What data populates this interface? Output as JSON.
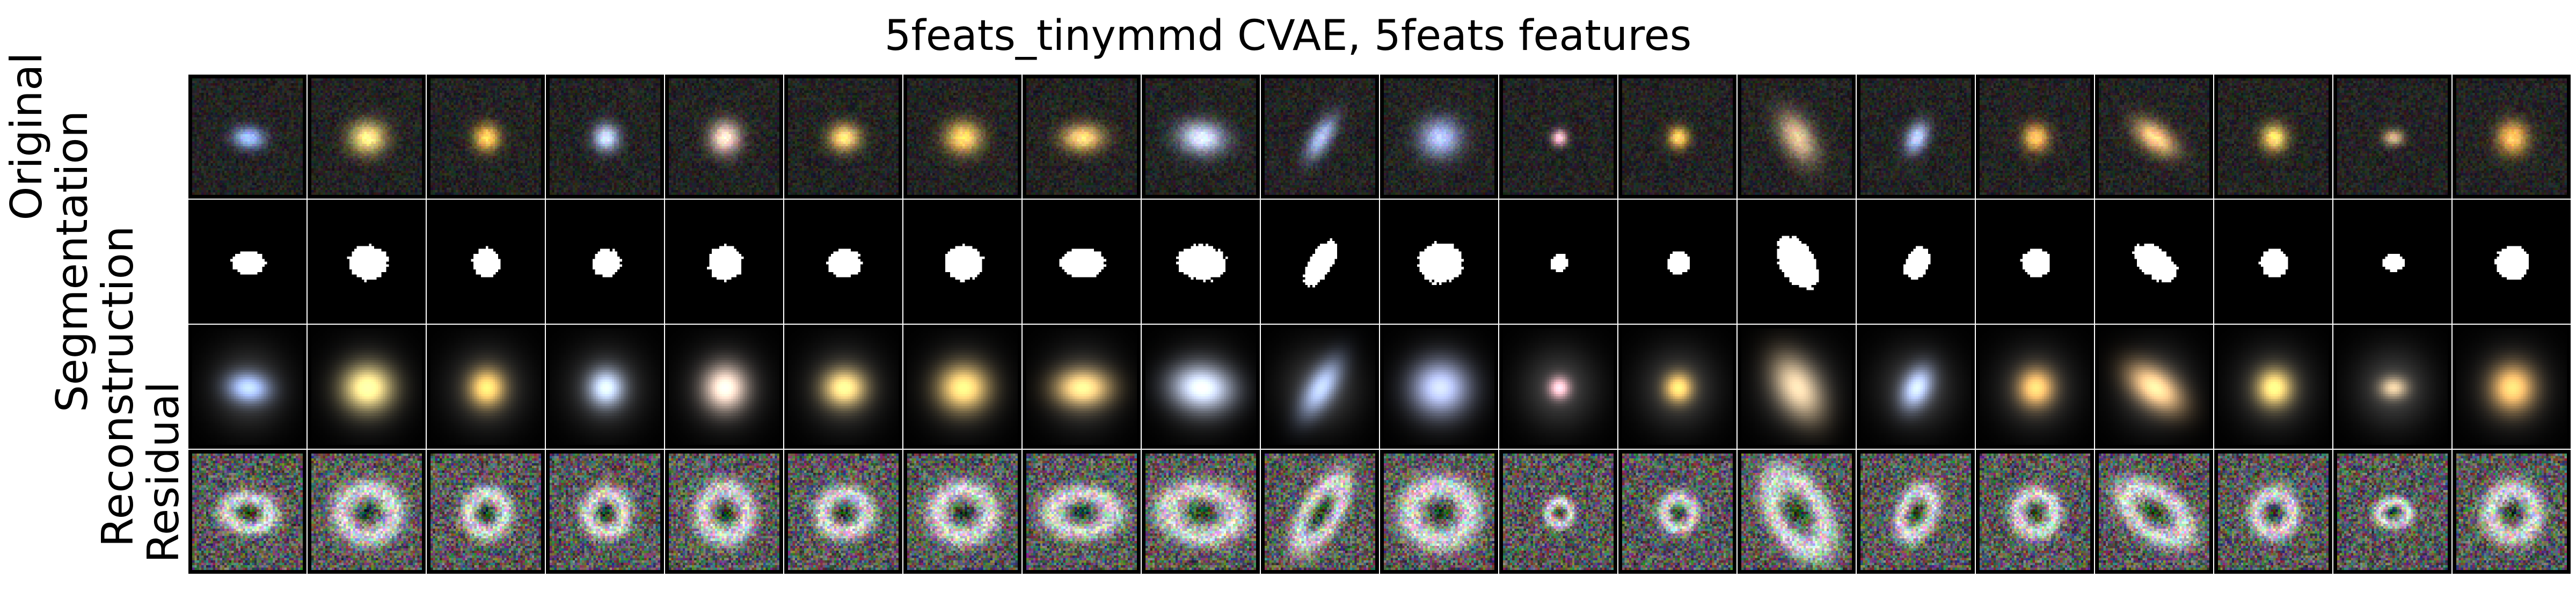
{
  "title": "5feats_tinymmd CVAE, 5feats features",
  "row_labels": [
    "Original",
    "Segmentation",
    "Reconstruction",
    "Residual"
  ],
  "columns": [
    {
      "color": "#8fb0ff"
    },
    {
      "color": "#ffe070"
    },
    {
      "color": "#ffc040"
    },
    {
      "color": "#b8d0ff"
    },
    {
      "color": "#ffd8c0"
    },
    {
      "color": "#ffd060"
    },
    {
      "color": "#ffc850"
    },
    {
      "color": "#ffc860"
    },
    {
      "color": "#c8d8ff"
    },
    {
      "color": "#90a8e0"
    },
    {
      "color": "#a0b0f0"
    },
    {
      "color": "#ffb0c0"
    },
    {
      "color": "#ffc040"
    },
    {
      "color": "#d0b080"
    },
    {
      "color": "#a8c0ff"
    },
    {
      "color": "#ffb040"
    },
    {
      "color": "#ffc070"
    },
    {
      "color": "#ffd050"
    },
    {
      "color": "#c0a070"
    },
    {
      "color": "#ffb040"
    }
  ]
}
